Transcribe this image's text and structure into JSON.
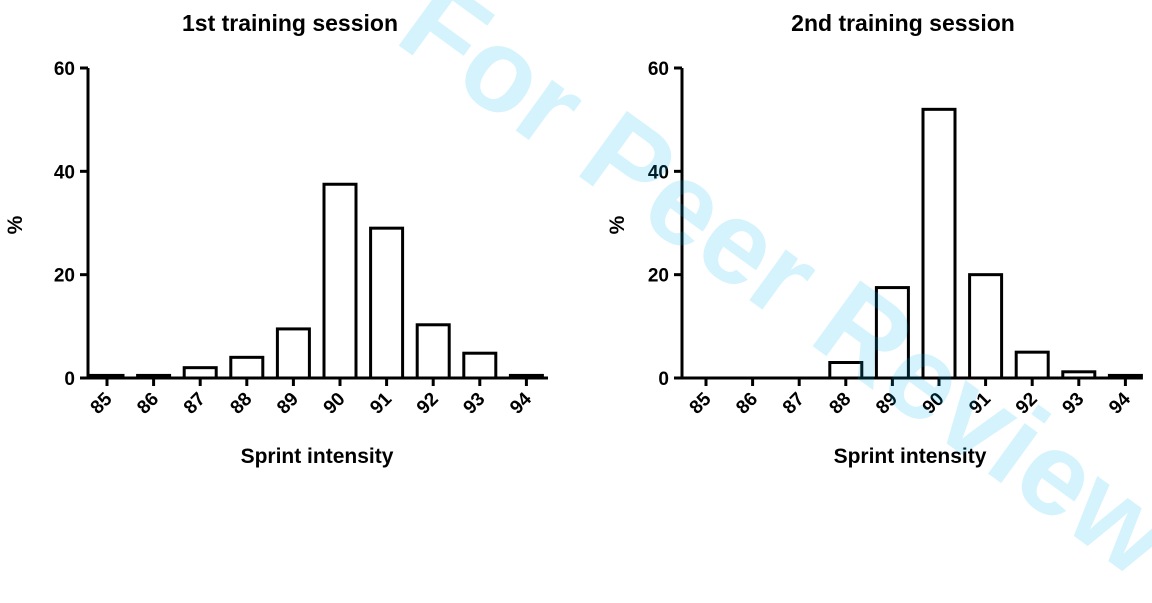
{
  "watermark": {
    "text": "For Peer Review"
  },
  "chart_data": [
    {
      "type": "bar",
      "title": "1st training session",
      "xlabel": "Sprint intensity",
      "ylabel": "%",
      "ylim": [
        0,
        60
      ],
      "yticks": [
        0,
        20,
        40,
        60
      ],
      "grid": false,
      "categories": [
        "85",
        "86",
        "87",
        "88",
        "89",
        "90",
        "91",
        "92",
        "93",
        "94"
      ],
      "values": [
        0.5,
        0.5,
        2,
        4,
        9.5,
        37.5,
        29,
        10.3,
        4.8,
        0.5
      ]
    },
    {
      "type": "bar",
      "title": "2nd training session",
      "xlabel": "Sprint intensity",
      "ylabel": "%",
      "ylim": [
        0,
        60
      ],
      "yticks": [
        0,
        20,
        40,
        60
      ],
      "grid": false,
      "categories": [
        "85",
        "86",
        "87",
        "88",
        "89",
        "90",
        "91",
        "92",
        "93",
        "94"
      ],
      "values": [
        0,
        0,
        0,
        3,
        17.5,
        52,
        20,
        5,
        1.2,
        0.5
      ]
    }
  ]
}
